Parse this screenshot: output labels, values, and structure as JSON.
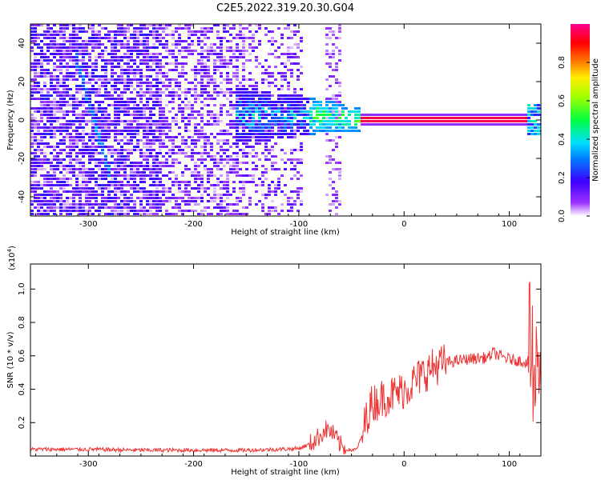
{
  "title": "C2E5.2022.319.20.30.G04",
  "chart_data": [
    {
      "type": "heatmap",
      "xlabel": "Height of straight line (km)",
      "ylabel": "Frequency (Hz)",
      "xlim": [
        -355,
        130
      ],
      "ylim": [
        -50,
        50
      ],
      "xticks": [
        -300,
        -200,
        -100,
        0,
        100
      ],
      "yticks": [
        -40,
        -20,
        0,
        20,
        40
      ],
      "grid": false,
      "colorbar": {
        "label": "Normalized spectral amplitude",
        "range": [
          0,
          1
        ],
        "ticks": [
          "0.0",
          "0.2",
          "0.4",
          "0.6",
          "0.8"
        ],
        "colors": [
          "#ffffff",
          "#9a32ff",
          "#3c00ff",
          "#0080ff",
          "#00e0ff",
          "#00ff40",
          "#a0ff00",
          "#ffee00",
          "#ff8000",
          "#ff0000",
          "#ff0090"
        ]
      },
      "features": {
        "noise_region_x": [
          -355,
          -95
        ],
        "noise_band_x": [
          -75,
          -60
        ],
        "diagonal_trace": {
          "from": [
            -313,
            35
          ],
          "to": [
            -280,
            -28
          ]
        },
        "central_line": {
          "x": [
            -40,
            118
          ],
          "y": 0,
          "amplitude": 0.95
        },
        "transition_x": [
          -160,
          -40
        ]
      }
    },
    {
      "type": "line",
      "xlabel": "Height of straight line (km)",
      "ylabel": "SNR (10 * v/v)",
      "multiplier_label": "(x10",
      "multiplier_exp": "4",
      "multiplier_close": ")",
      "xlim": [
        -355,
        130
      ],
      "ylim": [
        0,
        1.15
      ],
      "xticks": [
        -300,
        -200,
        -100,
        0,
        100
      ],
      "yticks": [
        0.2,
        0.4,
        0.6,
        0.8,
        1.0
      ],
      "ytick_labels": [
        "0.2",
        "0.4",
        "0.6",
        "0.8",
        "1.0"
      ],
      "color": "#ee3333",
      "series": [
        {
          "x": [
            -355,
            -300,
            -250,
            -200,
            -150,
            -120,
            -100,
            -90,
            -80,
            -75,
            -70,
            -65,
            -60,
            -55,
            -50,
            -45,
            -40,
            -35,
            -30,
            -25,
            -20,
            -15,
            -10,
            -5,
            0,
            5,
            10,
            20,
            30,
            40,
            50,
            60,
            70,
            80,
            85,
            90,
            100,
            110,
            117,
            120,
            125,
            130
          ],
          "y": [
            0.04,
            0.04,
            0.035,
            0.035,
            0.035,
            0.04,
            0.045,
            0.07,
            0.12,
            0.16,
            0.15,
            0.11,
            0.06,
            0.04,
            0.035,
            0.04,
            0.12,
            0.25,
            0.32,
            0.33,
            0.35,
            0.36,
            0.37,
            0.38,
            0.4,
            0.42,
            0.45,
            0.5,
            0.54,
            0.56,
            0.57,
            0.58,
            0.585,
            0.59,
            0.62,
            0.6,
            0.58,
            0.57,
            0.56,
            0.6,
            0.62,
            0.6
          ]
        }
      ]
    }
  ]
}
